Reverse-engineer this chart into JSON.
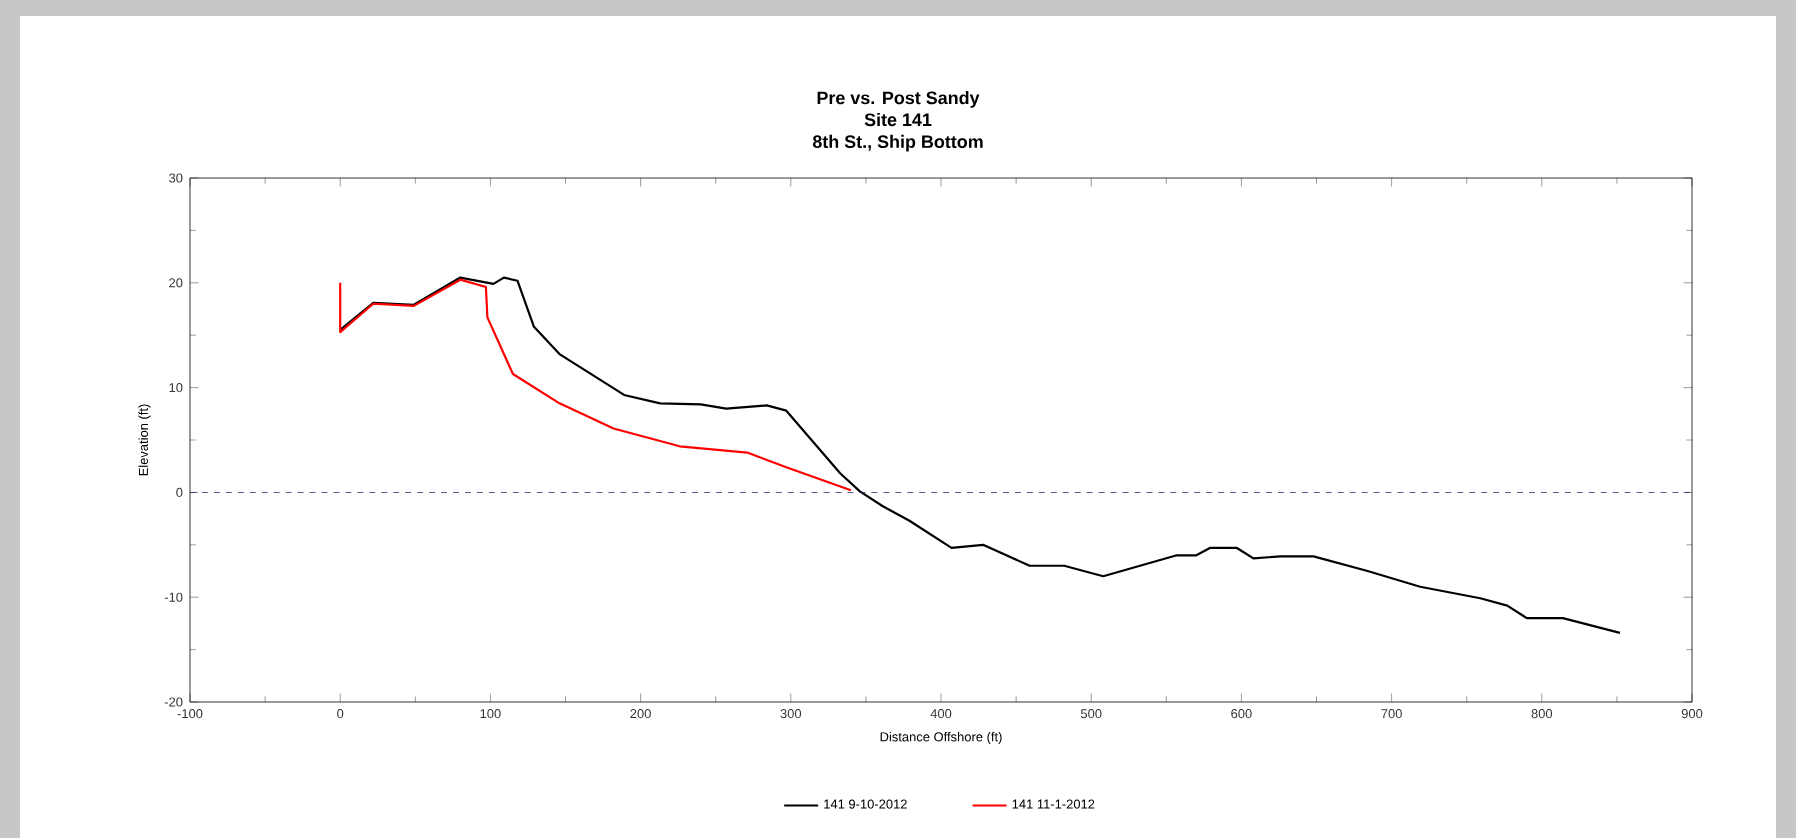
{
  "chart_data": {
    "type": "line",
    "title": "Pre vs. Post Sandy",
    "subtitle": "Site 141\n8th St., Ship Bottom",
    "xlabel": "Distance Offshore (ft)",
    "ylabel": "Elevation (ft)",
    "xlim": [
      -100,
      900
    ],
    "ylim": [
      -20,
      30
    ],
    "xticks": [
      -100,
      0,
      100,
      200,
      300,
      400,
      500,
      600,
      700,
      800,
      900
    ],
    "yticks": [
      -20,
      -10,
      0,
      10,
      20,
      30
    ],
    "grid": false,
    "legend": "bottom",
    "line_style": "solid",
    "marker": "none",
    "ref_lines": [
      {
        "axis": "y",
        "value": 0,
        "color": "#1a1a5e",
        "line_style": "dashed"
      }
    ],
    "series": [
      {
        "name": "141 9-10-2012",
        "color": "#000000",
        "x": [
          0,
          22,
          49,
          80,
          102,
          109,
          118,
          129,
          146,
          189,
          213,
          240,
          257,
          284,
          297,
          333,
          346,
          361,
          379,
          407,
          428,
          459,
          482,
          508,
          557,
          570,
          579,
          597,
          608,
          626,
          648,
          684,
          719,
          759,
          777,
          790,
          814,
          852
        ],
        "values": [
          15.5,
          18.1,
          17.9,
          20.5,
          19.9,
          20.5,
          20.2,
          15.8,
          13.2,
          9.3,
          8.5,
          8.4,
          8.0,
          8.3,
          7.8,
          1.8,
          0.1,
          -1.3,
          -2.7,
          -5.3,
          -5.0,
          -7.0,
          -7.0,
          -8.0,
          -6.0,
          -6.0,
          -5.3,
          -5.3,
          -6.3,
          -6.1,
          -6.1,
          -7.5,
          -9.0,
          -10.1,
          -10.8,
          -12.0,
          -12.0,
          -13.4
        ]
      },
      {
        "name": "141 11-1-2012",
        "color": "#ff0000",
        "x": [
          0,
          0,
          22,
          49,
          80,
          97,
          98,
          115,
          146,
          182,
          226,
          271,
          297,
          340
        ],
        "values": [
          20,
          15.3,
          18,
          17.8,
          20.3,
          19.6,
          16.7,
          11.3,
          8.5,
          6.1,
          4.4,
          3.8,
          2.4,
          0.2
        ]
      }
    ]
  }
}
